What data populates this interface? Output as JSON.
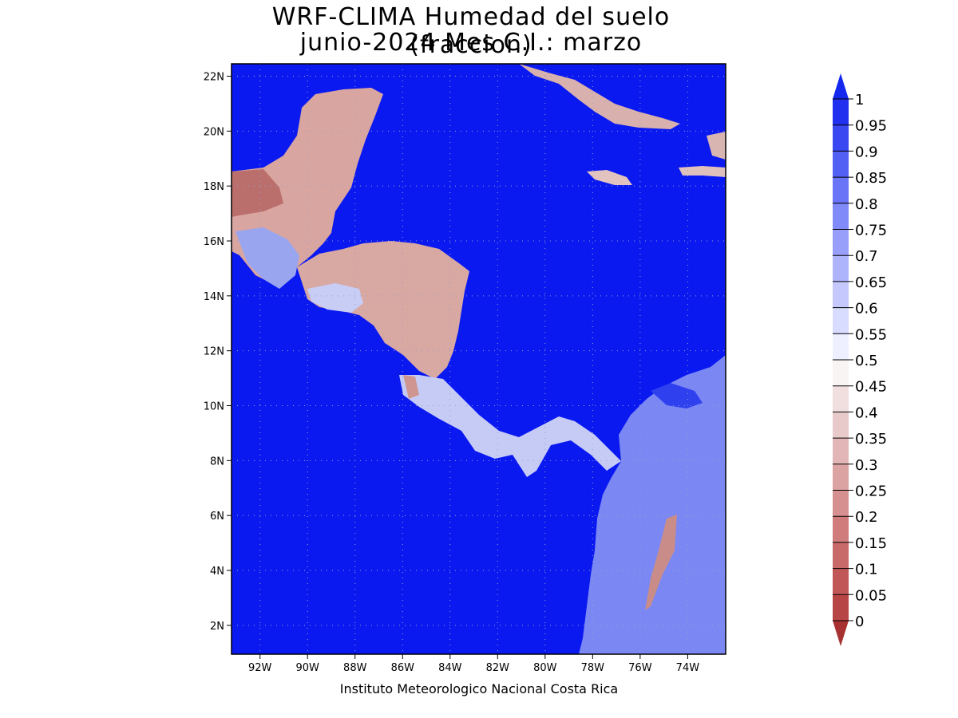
{
  "title": {
    "line1": "WRF-CLIMA Humedad del suelo (fraccion)",
    "line2": "junio-2024 Mes C.I.: marzo"
  },
  "credit": "Instituto Meteorologico Nacional Costa Rica",
  "map": {
    "lon_range": [
      -93.2,
      -72.4
    ],
    "lat_range": [
      0.95,
      22.45
    ],
    "lon_ticks": [
      "92W",
      "90W",
      "88W",
      "86W",
      "84W",
      "82W",
      "80W",
      "78W",
      "76W",
      "74W"
    ],
    "lon_tick_values": [
      -92,
      -90,
      -88,
      -86,
      -84,
      -82,
      -80,
      -78,
      -76,
      -74
    ],
    "lat_ticks": [
      "2N",
      "4N",
      "6N",
      "8N",
      "10N",
      "12N",
      "14N",
      "16N",
      "18N",
      "20N",
      "22N"
    ],
    "lat_tick_values": [
      2,
      4,
      6,
      8,
      10,
      12,
      14,
      16,
      18,
      20,
      22
    ],
    "ocean_color": "#0a19f0",
    "gridlines": true
  },
  "colorbar": {
    "labels": [
      "0",
      "0.05",
      "0.1",
      "0.15",
      "0.2",
      "0.25",
      "0.3",
      "0.35",
      "0.4",
      "0.45",
      "0.5",
      "0.55",
      "0.6",
      "0.65",
      "0.7",
      "0.75",
      "0.8",
      "0.85",
      "0.9",
      "0.95",
      "1"
    ],
    "colors": [
      "#a83232",
      "#b84545",
      "#c25757",
      "#c96a6a",
      "#d07c7c",
      "#d69090",
      "#dca3a3",
      "#e2b6b6",
      "#e9caca",
      "#f1dede",
      "#f8f4f4",
      "#eef0ff",
      "#d8dcfe",
      "#c4c8fd",
      "#aeb4fc",
      "#989ffa",
      "#808af8",
      "#6a74f6",
      "#5260f4",
      "#3a48f2",
      "#2030ee"
    ],
    "under_color": "#a83232",
    "over_color": "#1428ee"
  }
}
